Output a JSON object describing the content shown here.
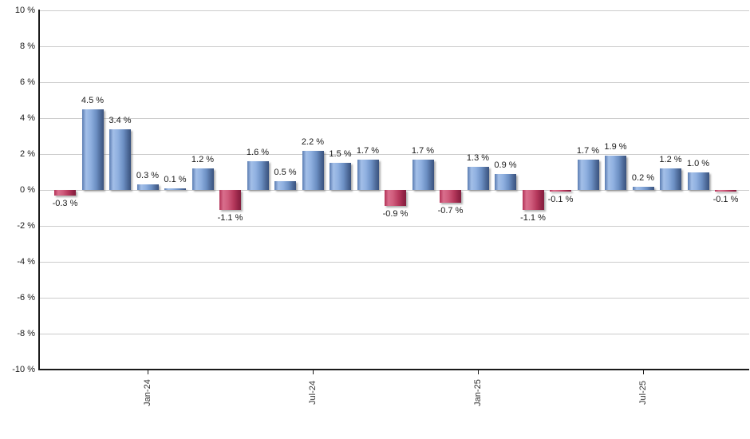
{
  "chart_data": {
    "type": "bar",
    "title": "",
    "xlabel": "",
    "ylabel": "",
    "unit": "%",
    "ylim": [
      -10,
      10
    ],
    "ytick_step": 2,
    "grid": true,
    "legend": null,
    "ytick_values": [
      10,
      8,
      6,
      4,
      2,
      0,
      -2,
      -4,
      -6,
      -8,
      -10
    ],
    "ytick_labels": [
      "10 %",
      "8 %",
      "6 %",
      "4 %",
      "2 %",
      "0 %",
      "-2 %",
      "-4 %",
      "-6 %",
      "-8 %",
      "-10 %"
    ],
    "values": [
      -0.3,
      4.5,
      3.4,
      0.3,
      0.1,
      1.2,
      -1.1,
      1.6,
      0.5,
      2.2,
      1.5,
      1.7,
      -0.9,
      1.7,
      -0.7,
      1.3,
      0.9,
      -1.1,
      -0.1,
      1.7,
      1.9,
      0.2,
      1.2,
      1.0,
      -0.1
    ],
    "bar_labels": [
      "-0.3 %",
      "4.5 %",
      "3.4 %",
      "0.3 %",
      "0.1 %",
      "1.2 %",
      "-1.1 %",
      "1.6 %",
      "0.5 %",
      "2.2 %",
      "1.5 %",
      "1.7 %",
      "-0.9 %",
      "1.7 %",
      "-0.7 %",
      "1.3 %",
      "0.9 %",
      "-1.1 %",
      "-0.1 %",
      "1.7 %",
      "1.9 %",
      "0.2 %",
      "1.2 %",
      "1.0 %",
      "-0.1 %"
    ],
    "x_ticks": [
      {
        "label": "Jan-24",
        "bar_index": 3
      },
      {
        "label": "Jul-24",
        "bar_index": 9
      },
      {
        "label": "Jan-25",
        "bar_index": 15
      },
      {
        "label": "Jul-25",
        "bar_index": 21
      }
    ],
    "colors": {
      "positive_bar": "#6a8fc8",
      "negative_bar": "#bb3b60",
      "gridline": "#cccccc",
      "axis": "#1a1a1a",
      "text": "#1a1a1a",
      "xtick_text": "#333333",
      "background": "#ffffff"
    }
  }
}
